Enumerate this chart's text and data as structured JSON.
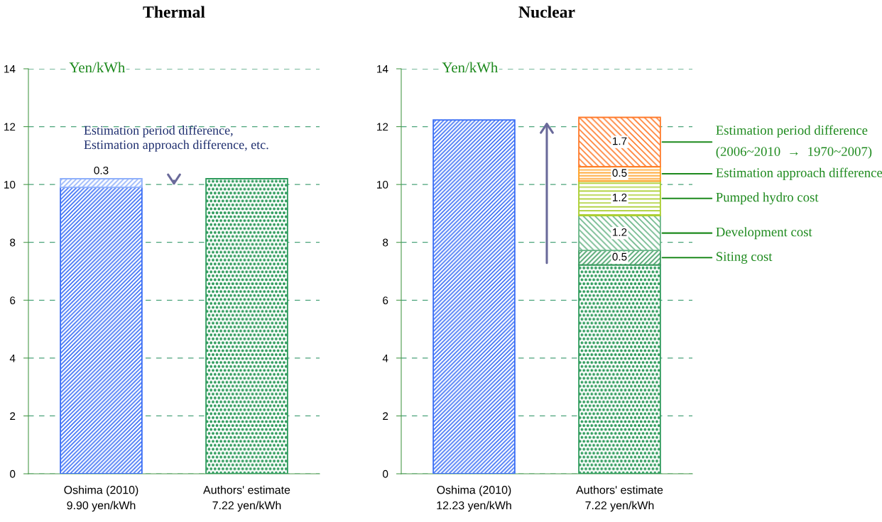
{
  "chart_data": [
    {
      "type": "bar",
      "title": "Thermal",
      "ylabel": "Yen/kWh",
      "stacked": true,
      "categories": [
        "Oshima (2010)\n9.90 yen/kWh",
        "Authors' estimate\n7.22 yen/kWh"
      ],
      "series": [
        {
          "colors": [
            "#3b6ff5",
            "#2e9b5c"
          ],
          "values": [
            9.9,
            10.2
          ]
        },
        {
          "color": "#8fb0fb",
          "values": [
            0.3,
            null
          ],
          "value_labels": [
            "0.3",
            null
          ]
        }
      ],
      "ylim": [
        0,
        14
      ],
      "yticks": [
        0,
        2,
        4,
        6,
        8,
        10,
        12,
        14
      ],
      "grid": "y",
      "legend": false,
      "annotations": [
        "Estimation period difference,\nEstimation approach difference, etc."
      ]
    },
    {
      "type": "bar",
      "title": "Nuclear",
      "ylabel": "Yen/kWh",
      "stacked": true,
      "categories": [
        "Oshima (2010)\n12.23 yen/kWh",
        "Authors' estimate\n7.22 yen/kWh"
      ],
      "series": [
        {
          "colors": [
            "#3b6ff5",
            "#2e9b5c"
          ],
          "values": [
            12.23,
            7.22
          ]
        },
        {
          "name": "Siting cost",
          "color": "#3a9a5e",
          "values": [
            null,
            0.5
          ],
          "value_labels": [
            null,
            "0.5"
          ]
        },
        {
          "name": "Development cost",
          "color": "#66b485",
          "values": [
            null,
            1.2
          ],
          "value_labels": [
            null,
            "1.2"
          ]
        },
        {
          "name": "Pumped hydro cost",
          "color": "#a9cd2c",
          "values": [
            null,
            1.2
          ],
          "value_labels": [
            null,
            "1.2"
          ]
        },
        {
          "name": "Estimation approach difference",
          "color": "#ff9e1f",
          "values": [
            null,
            0.5
          ],
          "value_labels": [
            null,
            "0.5"
          ]
        },
        {
          "name": "Estimation period difference\n(2006~2010  →  1970~2007)",
          "color": "#ff7a2a",
          "values": [
            null,
            1.7
          ],
          "value_labels": [
            null,
            "1.7"
          ]
        }
      ],
      "ylim": [
        0,
        14
      ],
      "yticks": [
        0,
        2,
        4,
        6,
        8,
        10,
        12,
        14
      ],
      "grid": "y",
      "legend": false
    }
  ]
}
